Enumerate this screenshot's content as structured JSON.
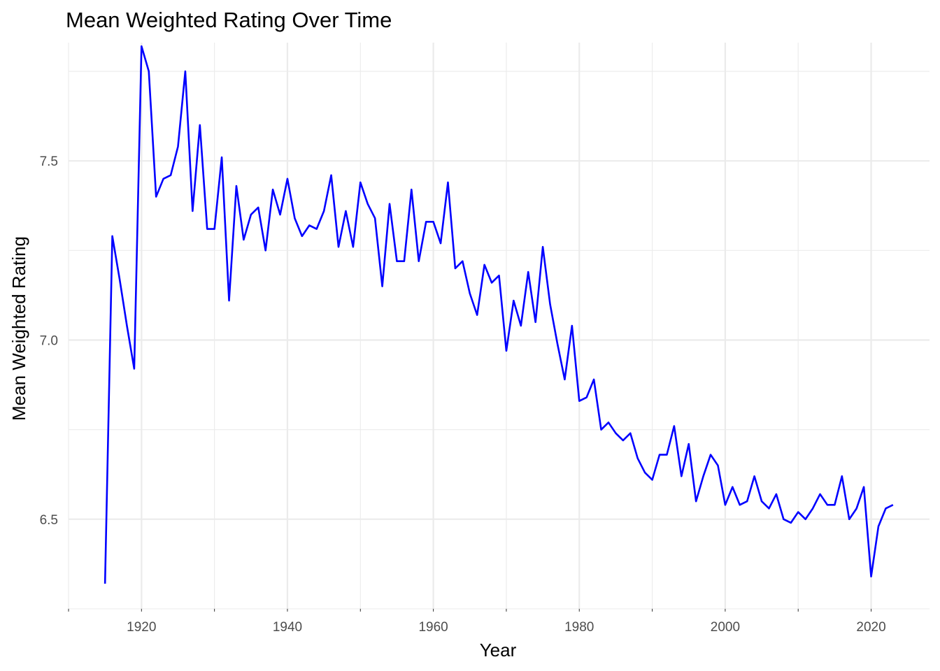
{
  "chart_data": {
    "type": "line",
    "title": "Mean Weighted Rating Over Time",
    "xlabel": "Year",
    "ylabel": "Mean Weighted Rating",
    "xlim": [
      1910,
      2028
    ],
    "ylim": [
      6.25,
      7.83
    ],
    "x_ticks": [
      1920,
      1940,
      1960,
      1980,
      2000,
      2020
    ],
    "x_tick_labels": [
      "1920",
      "1940",
      "1960",
      "1980",
      "2000",
      "2020"
    ],
    "x_minor_ticks": [
      1910,
      1930,
      1950,
      1970,
      1990,
      2010
    ],
    "y_ticks": [
      6.5,
      7.0,
      7.5
    ],
    "y_tick_labels": [
      "6.5",
      "7.0",
      "7.5"
    ],
    "y_minor_ticks": [
      6.25,
      6.75,
      7.25,
      7.75
    ],
    "grid": true,
    "line_color": "#0000ff",
    "series": [
      {
        "x": [
          1915,
          1916,
          1917,
          1918,
          1919,
          1920,
          1921,
          1922,
          1923,
          1924,
          1925,
          1926,
          1927,
          1928,
          1929,
          1930,
          1931,
          1932,
          1933,
          1934,
          1935,
          1936,
          1937,
          1938,
          1939,
          1940,
          1941,
          1942,
          1943,
          1944,
          1945,
          1946,
          1947,
          1948,
          1949,
          1950,
          1951,
          1952,
          1953,
          1954,
          1955,
          1956,
          1957,
          1958,
          1959,
          1960,
          1961,
          1962,
          1963,
          1964,
          1965,
          1966,
          1967,
          1968,
          1969,
          1970,
          1971,
          1972,
          1973,
          1974,
          1975,
          1976,
          1977,
          1978,
          1979,
          1980,
          1981,
          1982,
          1983,
          1984,
          1985,
          1986,
          1987,
          1988,
          1989,
          1990,
          1991,
          1992,
          1993,
          1994,
          1995,
          1996,
          1997,
          1998,
          1999,
          2000,
          2001,
          2002,
          2003,
          2004,
          2005,
          2006,
          2007,
          2008,
          2009,
          2010,
          2011,
          2012,
          2013,
          2014,
          2015,
          2016,
          2017,
          2018,
          2019,
          2020,
          2021,
          2022,
          2023
        ],
        "values": [
          6.32,
          7.29,
          7.17,
          7.04,
          6.92,
          7.82,
          7.75,
          7.4,
          7.45,
          7.46,
          7.54,
          7.75,
          7.36,
          7.6,
          7.31,
          7.31,
          7.51,
          7.11,
          7.43,
          7.28,
          7.35,
          7.37,
          7.25,
          7.42,
          7.35,
          7.45,
          7.34,
          7.29,
          7.32,
          7.31,
          7.36,
          7.46,
          7.26,
          7.36,
          7.26,
          7.44,
          7.38,
          7.34,
          7.15,
          7.38,
          7.22,
          7.22,
          7.42,
          7.22,
          7.33,
          7.33,
          7.27,
          7.44,
          7.2,
          7.22,
          7.13,
          7.07,
          7.21,
          7.16,
          7.18,
          6.97,
          7.11,
          7.04,
          7.19,
          7.05,
          7.26,
          7.1,
          6.99,
          6.89,
          7.04,
          6.83,
          6.84,
          6.89,
          6.75,
          6.77,
          6.74,
          6.72,
          6.74,
          6.67,
          6.63,
          6.61,
          6.68,
          6.68,
          6.76,
          6.62,
          6.71,
          6.55,
          6.62,
          6.68,
          6.65,
          6.54,
          6.59,
          6.54,
          6.55,
          6.62,
          6.55,
          6.53,
          6.57,
          6.5,
          6.49,
          6.52,
          6.5,
          6.53,
          6.57,
          6.54,
          6.54,
          6.62,
          6.5,
          6.53,
          6.59,
          6.34,
          6.48,
          6.53,
          6.54
        ]
      }
    ]
  }
}
